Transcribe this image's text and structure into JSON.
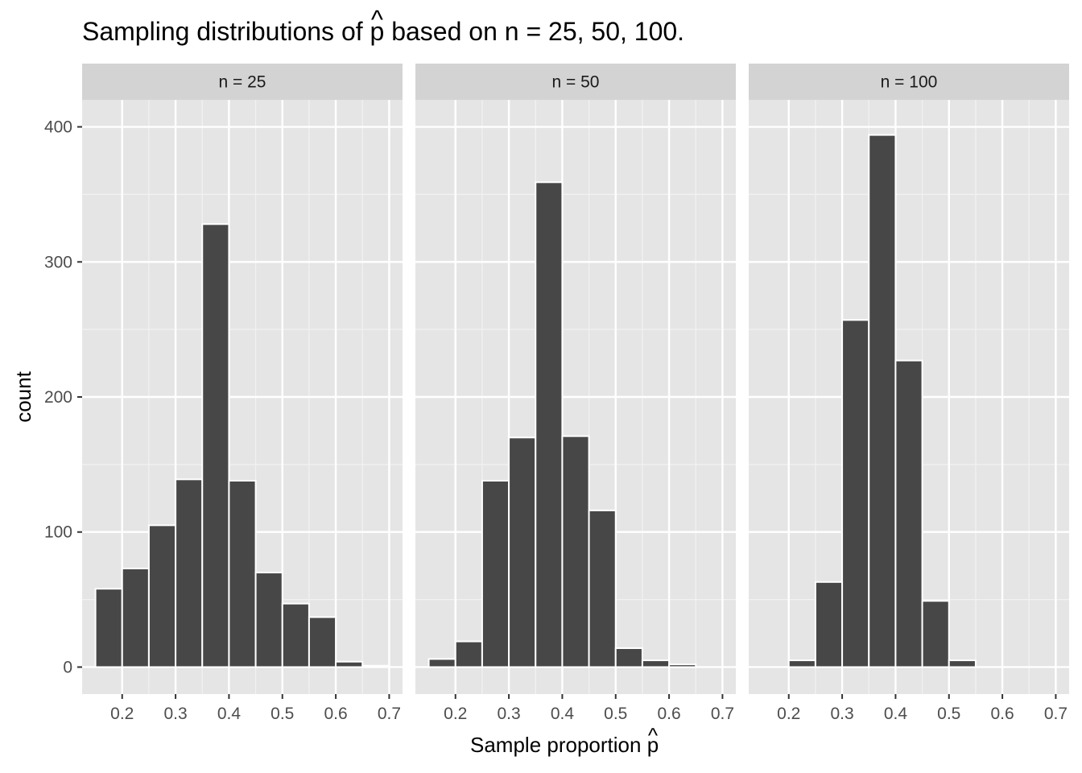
{
  "chart_data": {
    "type": "bar",
    "title": "Sampling distributions of p̂ based on n = 25, 50, 100.",
    "title_prefix": "Sampling distributions of ",
    "title_suffix": " based on n = 25, 50, 100.",
    "xlabel": "Sample proportion p̂",
    "xlabel_prefix": "Sample proportion ",
    "hat_symbol": "p",
    "ylabel": "count",
    "xlim": [
      0.125,
      0.725
    ],
    "ylim": [
      -20,
      420
    ],
    "x_ticks": [
      0.2,
      0.3,
      0.4,
      0.5,
      0.6,
      0.7
    ],
    "x_tick_labels": [
      "0.2",
      "0.3",
      "0.4",
      "0.5",
      "0.6",
      "0.7"
    ],
    "y_ticks": [
      0,
      100,
      200,
      300,
      400
    ],
    "y_tick_labels": [
      "0",
      "100",
      "200",
      "300",
      "400"
    ],
    "binwidth": 0.05,
    "grid": true,
    "bar_color": "#474747",
    "bar_outline_color": "#ffffff",
    "panel_background": "#e5e5e5",
    "strip_background": "#d3d3d3",
    "panels": [
      {
        "label": "n = 25",
        "bin_centers": [
          0.175,
          0.225,
          0.275,
          0.325,
          0.375,
          0.425,
          0.475,
          0.525,
          0.575,
          0.625,
          0.675
        ],
        "counts": [
          58,
          73,
          105,
          139,
          328,
          138,
          70,
          47,
          37,
          4,
          1
        ]
      },
      {
        "label": "n = 50",
        "bin_centers": [
          0.175,
          0.225,
          0.275,
          0.325,
          0.375,
          0.425,
          0.475,
          0.525,
          0.575,
          0.625
        ],
        "counts": [
          6,
          19,
          138,
          170,
          359,
          171,
          116,
          14,
          5,
          2
        ]
      },
      {
        "label": "n = 100",
        "bin_centers": [
          0.225,
          0.275,
          0.325,
          0.375,
          0.425,
          0.475,
          0.525
        ],
        "counts": [
          5,
          63,
          257,
          394,
          227,
          49,
          5
        ]
      }
    ]
  }
}
